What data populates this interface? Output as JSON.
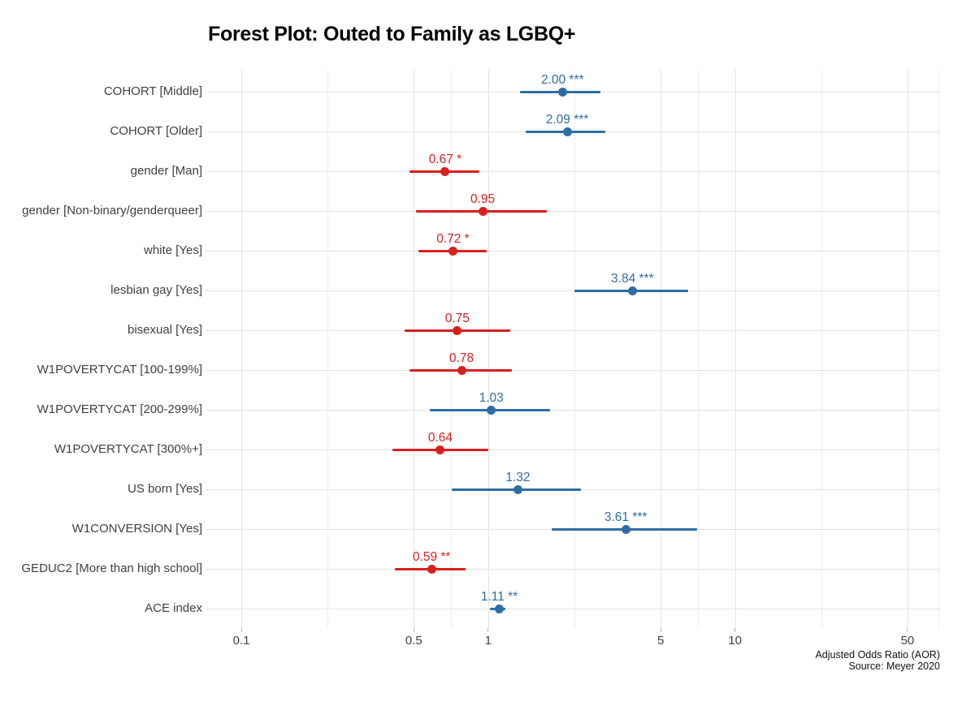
{
  "title": "Forest Plot: Outed to Family as LGBQ+",
  "caption": {
    "xlabel": "Adjusted Odds Ratio (AOR)",
    "source": "Source: Meyer 2020"
  },
  "colors": {
    "positive": "#2e6da4",
    "negative": "#d7211f",
    "grid_major": "#e3e3e3",
    "grid_minor": "#efefef",
    "axis_text": "#3f3f3f",
    "tick_mark": "#b3b3b3"
  },
  "chart_data": {
    "type": "scatter",
    "subtype": "forest-plot",
    "title": "Forest Plot: Outed to Family as LGBQ+",
    "xlabel": "Adjusted Odds Ratio (AOR)",
    "source": "Source: Meyer 2020",
    "x_scale": "log10",
    "xlim": [
      0.089,
      68
    ],
    "grid": true,
    "legend": "none",
    "x_ticks": [
      {
        "value": 0.1,
        "label": "0.1"
      },
      {
        "value": 0.5,
        "label": "0.5"
      },
      {
        "value": 1,
        "label": "1"
      },
      {
        "value": 5,
        "label": "5"
      },
      {
        "value": 10,
        "label": "10"
      },
      {
        "value": 50,
        "label": "50"
      }
    ],
    "x_minor_breaks": [
      0.2236,
      0.7071,
      2.2361,
      7.0711,
      22.3607,
      70.7107
    ],
    "rows": [
      {
        "label": "COHORT [Middle]",
        "estimate": 2.0,
        "ci_low": 1.35,
        "ci_high": 2.85,
        "significance": "***",
        "display": "2.00 ***",
        "direction": "positive"
      },
      {
        "label": "COHORT [Older]",
        "estimate": 2.09,
        "ci_low": 1.42,
        "ci_high": 2.98,
        "significance": "***",
        "display": "2.09 ***",
        "direction": "positive"
      },
      {
        "label": "gender [Man]",
        "estimate": 0.67,
        "ci_low": 0.48,
        "ci_high": 0.92,
        "significance": "*",
        "display": "0.67 *",
        "direction": "negative"
      },
      {
        "label": "gender [Non-binary/genderqueer]",
        "estimate": 0.95,
        "ci_low": 0.51,
        "ci_high": 1.73,
        "significance": "",
        "display": "0.95",
        "direction": "negative"
      },
      {
        "label": "white [Yes]",
        "estimate": 0.72,
        "ci_low": 0.52,
        "ci_high": 0.99,
        "significance": "*",
        "display": "0.72 *",
        "direction": "negative"
      },
      {
        "label": "lesbian gay [Yes]",
        "estimate": 3.84,
        "ci_low": 2.24,
        "ci_high": 6.46,
        "significance": "***",
        "display": "3.84 ***",
        "direction": "positive"
      },
      {
        "label": "bisexual [Yes]",
        "estimate": 0.75,
        "ci_low": 0.46,
        "ci_high": 1.23,
        "significance": "",
        "display": "0.75",
        "direction": "negative"
      },
      {
        "label": "W1POVERTYCAT [100-199%]",
        "estimate": 0.78,
        "ci_low": 0.48,
        "ci_high": 1.25,
        "significance": "",
        "display": "0.78",
        "direction": "negative"
      },
      {
        "label": "W1POVERTYCAT [200-299%]",
        "estimate": 1.03,
        "ci_low": 0.58,
        "ci_high": 1.78,
        "significance": "",
        "display": "1.03",
        "direction": "positive"
      },
      {
        "label": "W1POVERTYCAT [300%+]",
        "estimate": 0.64,
        "ci_low": 0.41,
        "ci_high": 1.0,
        "significance": "",
        "display": "0.64",
        "direction": "negative"
      },
      {
        "label": "US born [Yes]",
        "estimate": 1.32,
        "ci_low": 0.71,
        "ci_high": 2.38,
        "significance": "",
        "display": "1.32",
        "direction": "positive"
      },
      {
        "label": "W1CONVERSION [Yes]",
        "estimate": 3.61,
        "ci_low": 1.81,
        "ci_high": 7.02,
        "significance": "***",
        "display": "3.61 ***",
        "direction": "positive"
      },
      {
        "label": "GEDUC2 [More than high school]",
        "estimate": 0.59,
        "ci_low": 0.42,
        "ci_high": 0.81,
        "significance": "**",
        "display": "0.59 **",
        "direction": "negative"
      },
      {
        "label": "ACE index",
        "estimate": 1.11,
        "ci_low": 1.02,
        "ci_high": 1.17,
        "significance": "**",
        "display": "1.11 **",
        "direction": "positive"
      }
    ]
  }
}
